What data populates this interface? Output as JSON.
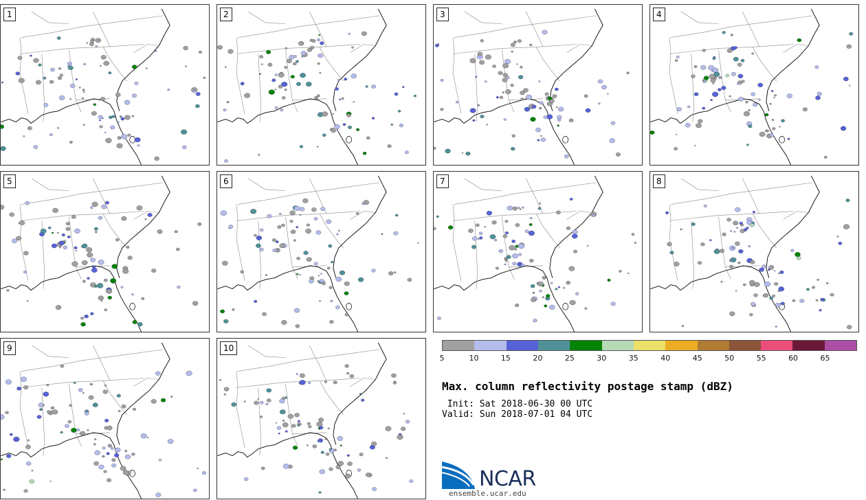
{
  "panels": [
    {
      "label": "1"
    },
    {
      "label": "2"
    },
    {
      "label": "3"
    },
    {
      "label": "4"
    },
    {
      "label": "5"
    },
    {
      "label": "6"
    },
    {
      "label": "7"
    },
    {
      "label": "8"
    },
    {
      "label": "9"
    },
    {
      "label": "10"
    }
  ],
  "colorbar": {
    "colors": [
      "#a0a0a0",
      "#b4bcec",
      "#5662d6",
      "#4e9298",
      "#058305",
      "#b6d9b6",
      "#ece06a",
      "#ecad24",
      "#b17c34",
      "#8c5438",
      "#ec4e7c",
      "#6b1838",
      "#ad4ea6"
    ],
    "ticks": [
      "5",
      "10",
      "15",
      "20",
      "25",
      "30",
      "35",
      "40",
      "45",
      "50",
      "55",
      "60",
      "65"
    ]
  },
  "title": "Max. column reflectivity postage stamp (dBZ)",
  "init": " Init: Sat 2018-06-30 00 UTC",
  "valid": "Valid: Sun 2018-07-01 04 UTC",
  "logo": {
    "name": "NCAR",
    "url": "ensemble.ucar.edu"
  },
  "map_colors": {
    "boundary": "#888888",
    "coast": "#000000"
  }
}
